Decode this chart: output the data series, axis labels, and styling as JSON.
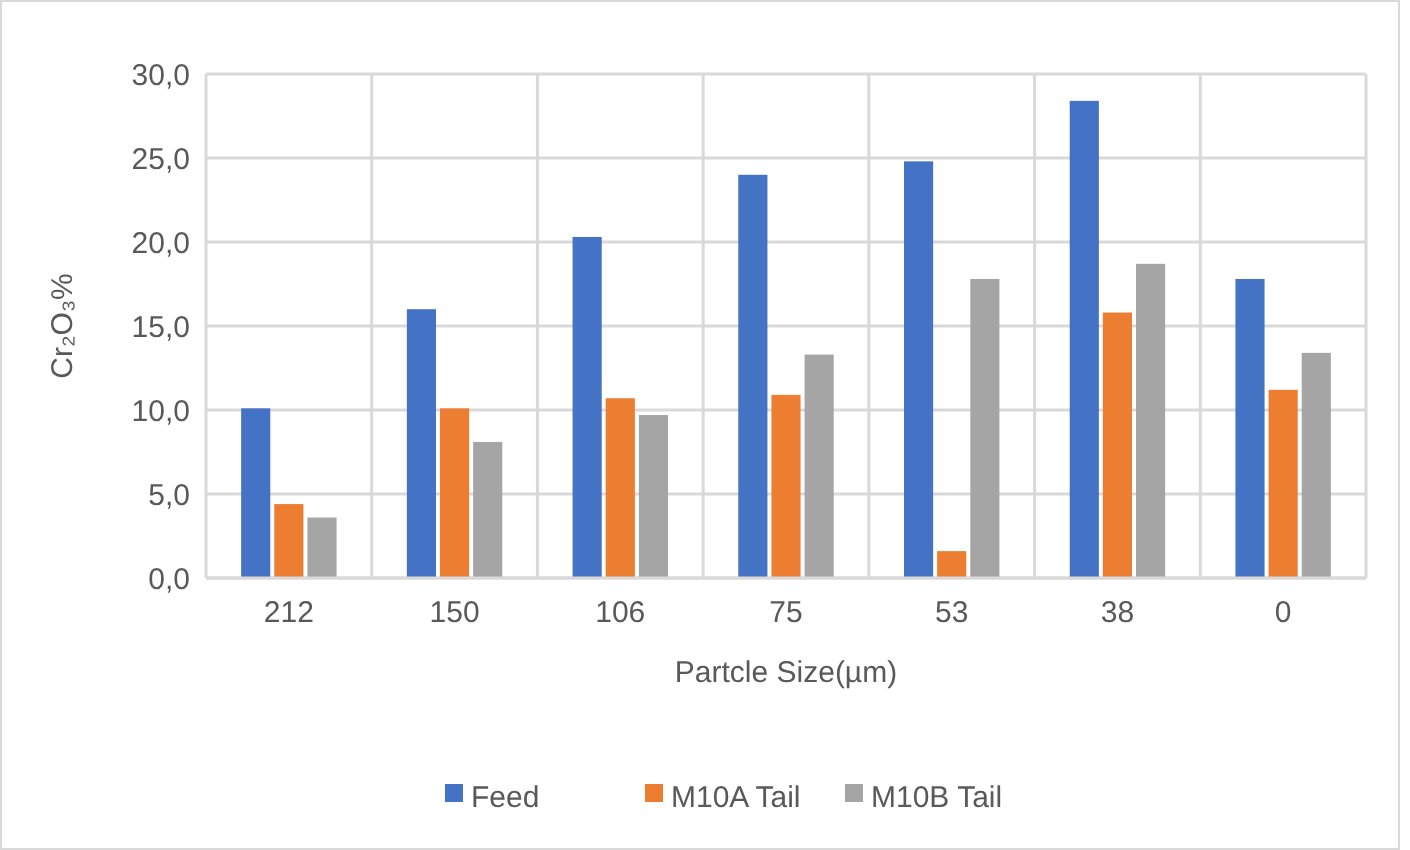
{
  "chart_data": {
    "type": "bar",
    "xlabel": "Partcle Size(µm)",
    "ylabel": "Cr₂O₃%",
    "categories": [
      "212",
      "150",
      "106",
      "75",
      "53",
      "38",
      "0"
    ],
    "series": [
      {
        "name": "Feed",
        "color": "#4472c4",
        "values": [
          10.1,
          16.0,
          20.3,
          24.0,
          24.8,
          28.4,
          17.8
        ]
      },
      {
        "name": "M10A Tail",
        "color": "#ed7d31",
        "values": [
          4.4,
          10.1,
          10.7,
          10.9,
          1.6,
          15.8,
          11.2
        ]
      },
      {
        "name": "M10B Tail",
        "color": "#a5a5a5",
        "values": [
          3.6,
          8.1,
          9.7,
          13.3,
          17.8,
          18.7,
          13.4
        ]
      }
    ],
    "ylim": [
      0,
      30
    ],
    "yticks": [
      {
        "value": 0,
        "label": "0,0"
      },
      {
        "value": 5,
        "label": "5,0"
      },
      {
        "value": 10,
        "label": "10,0"
      },
      {
        "value": 15,
        "label": "15,0"
      },
      {
        "value": 20,
        "label": "20,0"
      },
      {
        "value": 25,
        "label": "25,0"
      },
      {
        "value": 30,
        "label": "30,0"
      }
    ],
    "grid": true,
    "legend": "bottom"
  }
}
